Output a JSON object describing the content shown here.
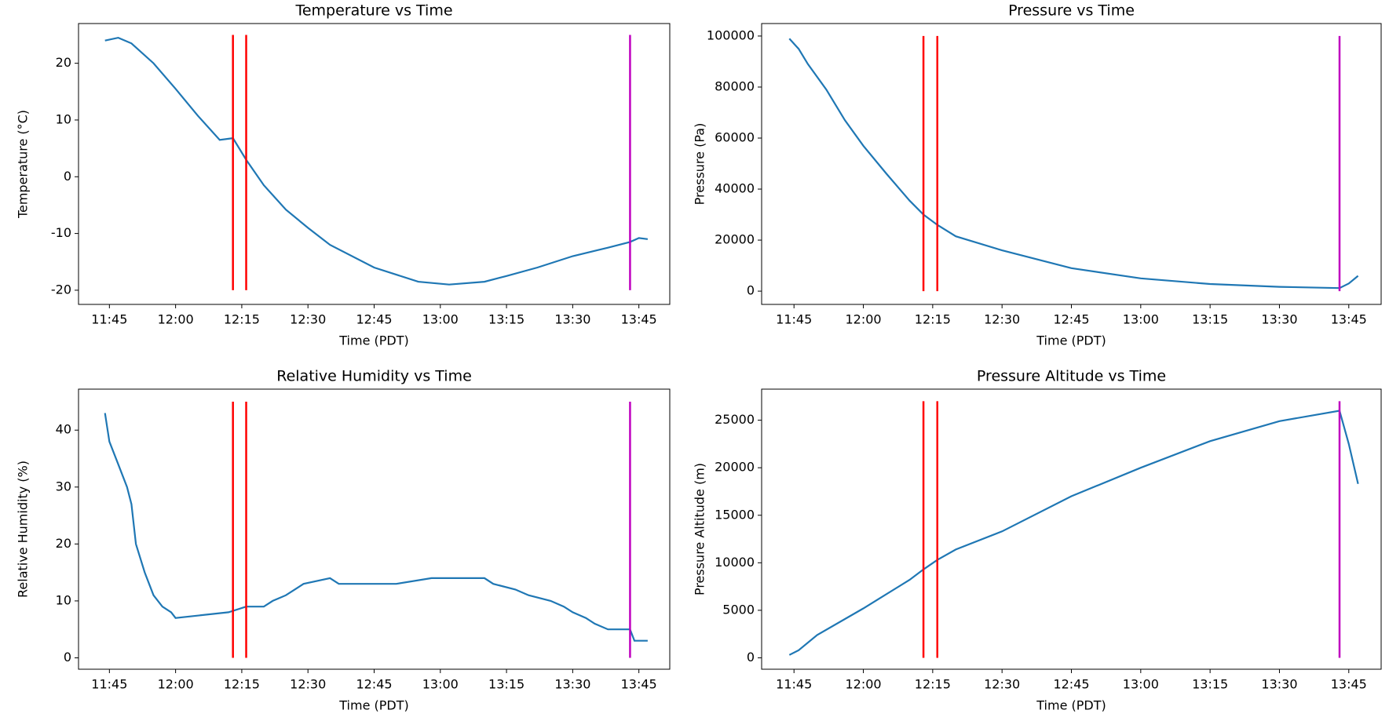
{
  "chart_data": [
    {
      "type": "line",
      "title": "Temperature vs Time",
      "x_label": "Time (PDT)",
      "y_label": "Temperature (°C)",
      "color": "#1f77b4",
      "x": [
        "11:44",
        "11:47",
        "11:50",
        "11:55",
        "12:00",
        "12:05",
        "12:10",
        "12:13",
        "12:16",
        "12:20",
        "12:25",
        "12:30",
        "12:35",
        "12:45",
        "12:55",
        "13:02",
        "13:10",
        "13:15",
        "13:22",
        "13:30",
        "13:38",
        "13:43",
        "13:45",
        "13:47"
      ],
      "values": [
        24,
        24.5,
        23.5,
        20,
        15.5,
        10.8,
        6.5,
        6.8,
        3,
        -1.5,
        -5.8,
        -9,
        -12,
        -16,
        -18.5,
        -19,
        -18.5,
        -17.5,
        -16,
        -14,
        -12.5,
        -11.5,
        -10.8,
        -11
      ],
      "xlim": [
        "11:38",
        "13:52"
      ],
      "xticks": [
        "11:45",
        "12:00",
        "12:15",
        "12:30",
        "12:45",
        "13:00",
        "13:15",
        "13:30",
        "13:45"
      ],
      "ylim": [
        -22.5,
        27
      ],
      "yticks": [
        -20,
        -10,
        0,
        10,
        20
      ],
      "vlines": {
        "x": [
          "12:13",
          "12:16",
          "13:43"
        ],
        "colors": [
          "#ff0000",
          "#ff0000",
          "#bf00bf"
        ],
        "ymin": -20,
        "ymax": 25
      }
    },
    {
      "type": "line",
      "title": "Pressure vs Time",
      "x_label": "Time (PDT)",
      "y_label": "Pressure (Pa)",
      "color": "#1f77b4",
      "x": [
        "11:44",
        "11:46",
        "11:48",
        "11:52",
        "11:56",
        "12:00",
        "12:05",
        "12:10",
        "12:13",
        "12:16",
        "12:20",
        "12:30",
        "12:45",
        "13:00",
        "13:15",
        "13:30",
        "13:43",
        "13:45",
        "13:47"
      ],
      "values": [
        99000,
        95000,
        89000,
        79000,
        67000,
        57000,
        46000,
        35500,
        30000,
        26000,
        21500,
        16000,
        9000,
        5000,
        2800,
        1700,
        1200,
        3000,
        6000
      ],
      "xlim": [
        "11:38",
        "13:52"
      ],
      "xticks": [
        "11:45",
        "12:00",
        "12:15",
        "12:30",
        "12:45",
        "13:00",
        "13:15",
        "13:30",
        "13:45"
      ],
      "ylim": [
        -5200,
        104900
      ],
      "yticks": [
        0,
        20000,
        40000,
        60000,
        80000,
        100000
      ],
      "vlines": {
        "x": [
          "12:13",
          "12:16",
          "13:43"
        ],
        "colors": [
          "#ff0000",
          "#ff0000",
          "#bf00bf"
        ],
        "ymin": 0,
        "ymax": 100000
      }
    },
    {
      "type": "line",
      "title": "Relative Humidity vs Time",
      "x_label": "Time (PDT)",
      "y_label": "Relative Humidity (%)",
      "color": "#1f77b4",
      "x": [
        "11:44",
        "11:45",
        "11:47",
        "11:49",
        "11:50",
        "11:51",
        "11:53",
        "11:55",
        "11:57",
        "11:59",
        "12:00",
        "12:12",
        "12:16",
        "12:20",
        "12:22",
        "12:25",
        "12:27",
        "12:29",
        "12:35",
        "12:37",
        "12:50",
        "12:58",
        "13:10",
        "13:12",
        "13:17",
        "13:20",
        "13:25",
        "13:28",
        "13:30",
        "13:33",
        "13:35",
        "13:38",
        "13:43",
        "13:44",
        "13:47"
      ],
      "values": [
        43,
        38,
        34,
        30,
        27,
        20,
        15,
        11,
        9,
        8,
        7,
        8,
        9,
        9,
        10,
        11,
        12,
        13,
        14,
        13,
        13,
        14,
        14,
        13,
        12,
        11,
        10,
        9,
        8,
        7,
        6,
        5,
        5,
        3,
        3
      ],
      "xlim": [
        "11:38",
        "13:52"
      ],
      "xticks": [
        "11:45",
        "12:00",
        "12:15",
        "12:30",
        "12:45",
        "13:00",
        "13:15",
        "13:30",
        "13:45"
      ],
      "ylim": [
        -2,
        47.2
      ],
      "yticks": [
        0,
        10,
        20,
        30,
        40
      ],
      "vlines": {
        "x": [
          "12:13",
          "12:16",
          "13:43"
        ],
        "colors": [
          "#ff0000",
          "#ff0000",
          "#bf00bf"
        ],
        "ymin": 0,
        "ymax": 45
      }
    },
    {
      "type": "line",
      "title": "Pressure Altitude vs Time",
      "x_label": "Time (PDT)",
      "y_label": "Pressure Altitude (m)",
      "color": "#1f77b4",
      "x": [
        "11:44",
        "11:46",
        "11:50",
        "12:00",
        "12:10",
        "12:13",
        "12:16",
        "12:20",
        "12:30",
        "12:45",
        "13:00",
        "13:15",
        "13:30",
        "13:43",
        "13:45",
        "13:47"
      ],
      "values": [
        300,
        800,
        2400,
        5200,
        8200,
        9300,
        10300,
        11400,
        13300,
        17000,
        20000,
        22800,
        24900,
        26000,
        22500,
        18300
      ],
      "xlim": [
        "11:38",
        "13:52"
      ],
      "xticks": [
        "11:45",
        "12:00",
        "12:15",
        "12:30",
        "12:45",
        "13:00",
        "13:15",
        "13:30",
        "13:45"
      ],
      "ylim": [
        -1200,
        28270
      ],
      "yticks": [
        0,
        5000,
        10000,
        15000,
        20000,
        25000
      ],
      "vlines": {
        "x": [
          "12:13",
          "12:16",
          "13:43"
        ],
        "colors": [
          "#ff0000",
          "#ff0000",
          "#bf00bf"
        ],
        "ymin": 0,
        "ymax": 27000
      }
    }
  ]
}
